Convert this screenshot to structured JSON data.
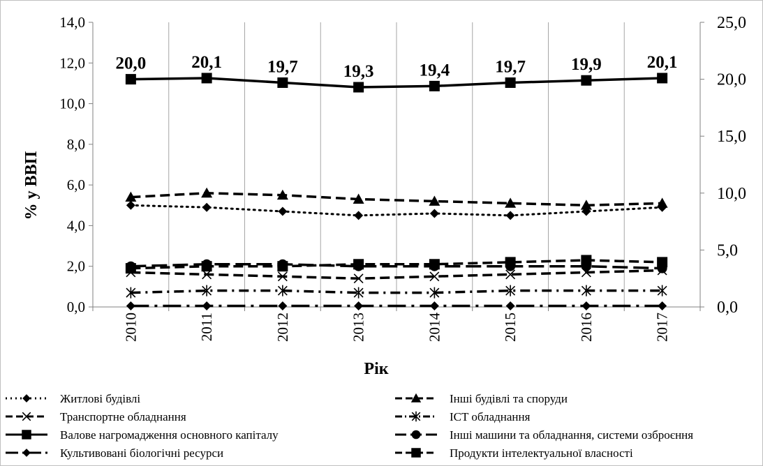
{
  "chart_data": {
    "type": "line",
    "x_title": "Рік",
    "y_title": "% у ВВП",
    "categories": [
      "2010",
      "2011",
      "2012",
      "2013",
      "2014",
      "2015",
      "2016",
      "2017"
    ],
    "y_left": {
      "range": [
        0,
        14
      ],
      "ticks": [
        "0,0",
        "2,0",
        "4,0",
        "6,0",
        "8,0",
        "10,0",
        "12,0",
        "14,0"
      ]
    },
    "y_right": {
      "range": [
        0,
        25
      ],
      "ticks": [
        "0,0",
        "5,0",
        "10,0",
        "15,0",
        "20,0",
        "25,0"
      ]
    },
    "grid": "vertical",
    "legend_position": "bottom",
    "series": [
      {
        "name": "Житлові будівлі",
        "axis": "left",
        "values": [
          5.0,
          4.9,
          4.7,
          4.5,
          4.6,
          4.5,
          4.7,
          4.9
        ],
        "line": "dotted",
        "marker": "diamond"
      },
      {
        "name": "Інші будівлі та споруди",
        "axis": "left",
        "values": [
          5.4,
          5.6,
          5.5,
          5.3,
          5.2,
          5.1,
          5.0,
          5.1
        ],
        "line": "dashed",
        "marker": "triangle"
      },
      {
        "name": "Транспортне обладнання",
        "axis": "left",
        "values": [
          1.7,
          1.6,
          1.5,
          1.4,
          1.5,
          1.6,
          1.7,
          1.8
        ],
        "line": "dashed",
        "marker": "x"
      },
      {
        "name": "ICT обладнання",
        "axis": "left",
        "values": [
          0.7,
          0.8,
          0.8,
          0.7,
          0.7,
          0.8,
          0.8,
          0.8
        ],
        "line": "dashdot",
        "marker": "asterisk"
      },
      {
        "name": "Валове нагромадження основного капіталу",
        "axis": "right",
        "values": [
          20.0,
          20.1,
          19.7,
          19.3,
          19.4,
          19.7,
          19.9,
          20.1
        ],
        "line": "solid",
        "marker": "square",
        "labels": [
          "20,0",
          "20,1",
          "19,7",
          "19,3",
          "19,4",
          "19,7",
          "19,9",
          "20,1"
        ]
      },
      {
        "name": "Інші машини та обладнання, системи озброєння",
        "axis": "left",
        "values": [
          2.0,
          2.1,
          2.1,
          2.0,
          2.0,
          2.0,
          2.0,
          1.9
        ],
        "line": "longdash",
        "marker": "circle"
      },
      {
        "name": "Культивовані біологічні ресурси",
        "axis": "left",
        "values": [
          0.05,
          0.05,
          0.05,
          0.05,
          0.05,
          0.05,
          0.05,
          0.05
        ],
        "line": "longdashdot",
        "marker": "diamond"
      },
      {
        "name": "Продукти інтелектуальної власності",
        "axis": "left",
        "values": [
          1.9,
          2.0,
          2.0,
          2.1,
          2.1,
          2.2,
          2.3,
          2.2
        ],
        "line": "dashed",
        "marker": "square"
      }
    ]
  }
}
